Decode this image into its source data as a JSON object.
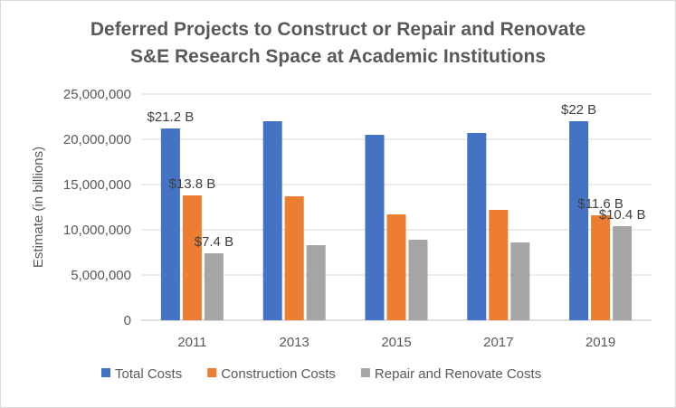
{
  "chart_data": {
    "type": "bar",
    "title_line1": "Deferred Projects to Construct or Repair and Renovate",
    "title_line2": "S&E Research Space at Academic Institutions",
    "ylabel": "Estimate (in billions)",
    "xlabel": "",
    "ylim": [
      0,
      25000000
    ],
    "yticks": [
      0,
      5000000,
      10000000,
      15000000,
      20000000,
      25000000
    ],
    "ytick_labels": [
      "0",
      "5,000,000",
      "10,000,000",
      "15,000,000",
      "20,000,000",
      "25,000,000"
    ],
    "grid": true,
    "legend_position": "bottom",
    "categories": [
      "2011",
      "2013",
      "2015",
      "2017",
      "2019"
    ],
    "series": [
      {
        "name": "Total Costs",
        "color": "#4472c4",
        "values": [
          21200000,
          22000000,
          20500000,
          20700000,
          22000000
        ]
      },
      {
        "name": "Construction Costs",
        "color": "#ed7d31",
        "values": [
          13800000,
          13700000,
          11700000,
          12200000,
          11600000
        ]
      },
      {
        "name": "Repair and Renovate Costs",
        "color": "#a5a5a5",
        "values": [
          7400000,
          8300000,
          8900000,
          8600000,
          10400000
        ]
      }
    ],
    "annotations": [
      {
        "series": 0,
        "category": 0,
        "text": "$21.2 B"
      },
      {
        "series": 1,
        "category": 0,
        "text": "$13.8 B"
      },
      {
        "series": 2,
        "category": 0,
        "text": "$7.4 B"
      },
      {
        "series": 0,
        "category": 4,
        "text": "$22 B"
      },
      {
        "series": 1,
        "category": 4,
        "text": "$11.6 B"
      },
      {
        "series": 2,
        "category": 4,
        "text": "$10.4 B"
      }
    ]
  }
}
